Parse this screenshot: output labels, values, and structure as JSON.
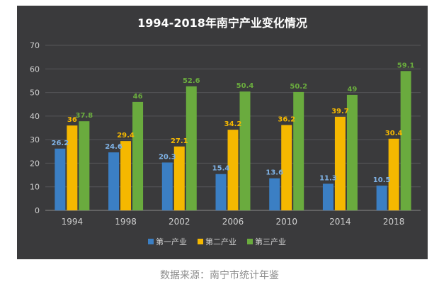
{
  "chart_data": {
    "type": "bar",
    "title": "1994-2018年南宁产业变化情况",
    "categories": [
      "1994",
      "1998",
      "2002",
      "2006",
      "2010",
      "2014",
      "2018"
    ],
    "series": [
      {
        "name": "第一产业",
        "color": "#3b7fc4",
        "values": [
          26.2,
          24.6,
          20.3,
          15.4,
          13.6,
          11.3,
          10.5
        ]
      },
      {
        "name": "第二产业",
        "color": "#f5b800",
        "values": [
          36,
          29.4,
          27.1,
          34.2,
          36.2,
          39.7,
          30.4
        ]
      },
      {
        "name": "第三产业",
        "color": "#6aab3e",
        "values": [
          37.8,
          46,
          52.6,
          50.4,
          50.2,
          49,
          59.1
        ]
      }
    ],
    "ylim": [
      0,
      70
    ],
    "yticks": [
      0,
      10,
      20,
      30,
      40,
      50,
      60,
      70
    ],
    "grid": true,
    "legend_position": "bottom",
    "label_colors": {
      "第一产业": "#7fb2e5",
      "第二产业": "#f5b800",
      "第三产业": "#6aab3e"
    }
  },
  "source_note": "数据来源：南宁市统计年鉴"
}
